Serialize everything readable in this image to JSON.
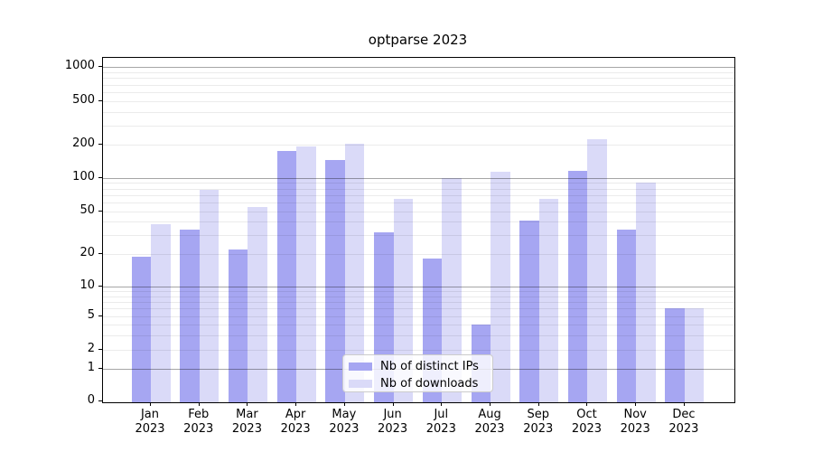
{
  "title": "optparse 2023",
  "chart_data": {
    "type": "bar",
    "title": "optparse 2023",
    "categories": [
      "Jan",
      "Feb",
      "Mar",
      "Apr",
      "May",
      "Jun",
      "Jul",
      "Aug",
      "Sep",
      "Oct",
      "Nov",
      "Dec"
    ],
    "year_label": "2023",
    "series": [
      {
        "name": "Nb of distinct IPs",
        "color": "#a6a6f2",
        "values": [
          19,
          34,
          22,
          175,
          145,
          32,
          18,
          4,
          41,
          115,
          34,
          6
        ]
      },
      {
        "name": "Nb of downloads",
        "color": "#dadaf8",
        "values": [
          38,
          78,
          55,
          195,
          205,
          65,
          100,
          113,
          65,
          225,
          90,
          6
        ]
      }
    ],
    "xlabel": "",
    "ylabel": "",
    "yscale": "symlog",
    "yticks": [
      0,
      1,
      2,
      5,
      10,
      20,
      50,
      100,
      200,
      500,
      1000
    ],
    "ylim": [
      0,
      1400
    ],
    "grid": true,
    "legend_position": "lower center"
  },
  "colors": {
    "background": "#ffffff",
    "bar_dark": "#a6a6f2",
    "bar_light": "#dadaf8",
    "grid_major": "#a6a6a6",
    "grid_minor": "#ebebeb",
    "text": "#000000"
  }
}
